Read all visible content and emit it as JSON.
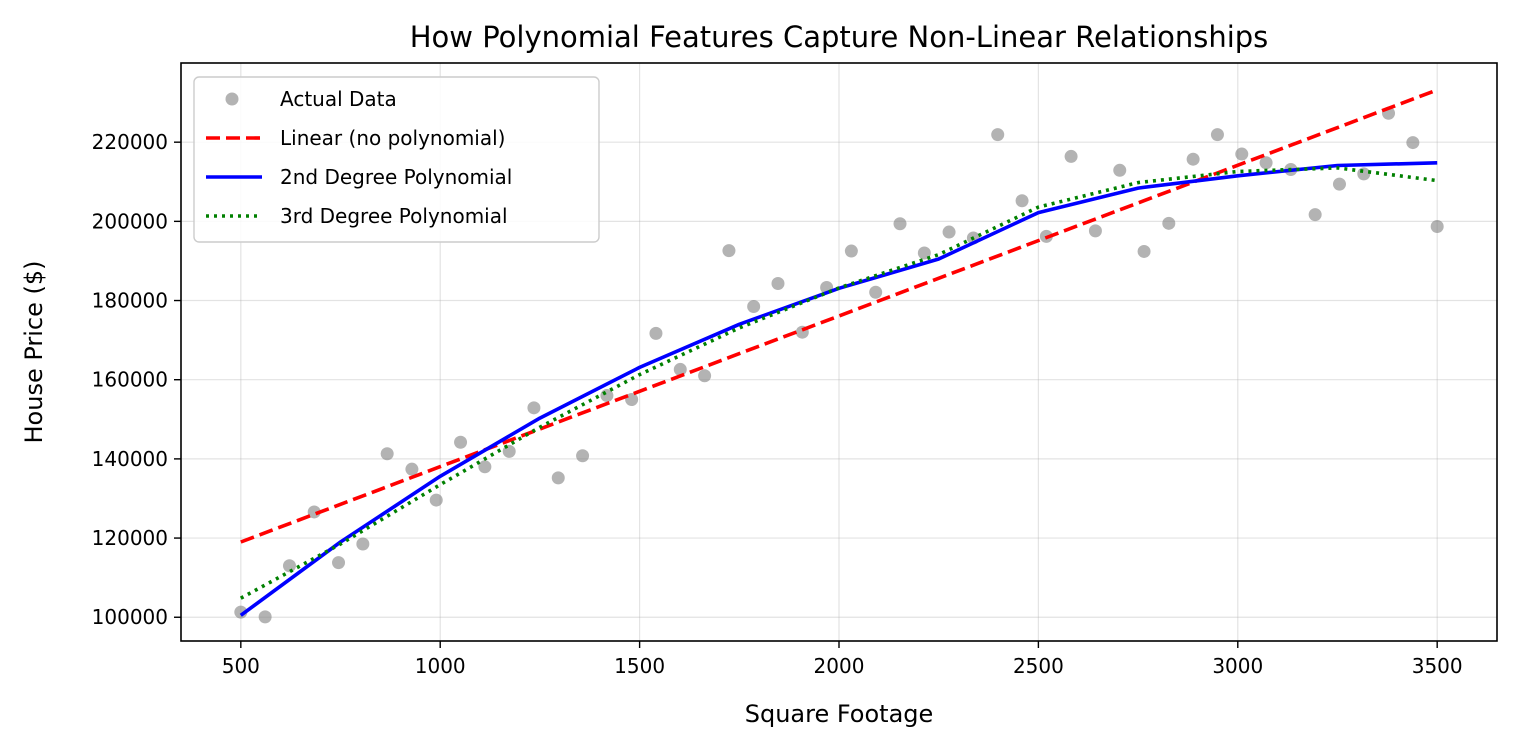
{
  "chart_data": {
    "type": "scatter",
    "title": "How Polynomial Features Capture Non-Linear Relationships",
    "xlabel": "Square Footage",
    "ylabel": "House Price ($)",
    "xlim": [
      350,
      3650
    ],
    "ylim": [
      94000,
      240000
    ],
    "x_ticks": [
      500,
      1000,
      1500,
      2000,
      2500,
      3000,
      3500
    ],
    "y_ticks": [
      100000,
      120000,
      140000,
      160000,
      180000,
      200000,
      220000
    ],
    "grid": true,
    "legend_position": "top-left",
    "series": [
      {
        "name": "Actual Data",
        "kind": "scatter",
        "color": "#808080",
        "x": [
          500,
          561,
          622,
          684,
          745,
          806,
          867,
          929,
          990,
          1051,
          1112,
          1173,
          1235,
          1296,
          1357,
          1418,
          1480,
          1541,
          1602,
          1663,
          1724,
          1786,
          1847,
          1908,
          1969,
          2031,
          2092,
          2153,
          2214,
          2276,
          2337,
          2398,
          2459,
          2520,
          2582,
          2643,
          2704,
          2765,
          2827,
          2888,
          2949,
          3010,
          3071,
          3133,
          3194,
          3255,
          3316,
          3378,
          3439,
          3500
        ],
        "y": [
          101300,
          100100,
          113000,
          126600,
          113800,
          118500,
          141300,
          137400,
          129600,
          144200,
          138000,
          141900,
          152900,
          135200,
          140800,
          156000,
          155000,
          171700,
          162600,
          161000,
          192600,
          178500,
          184300,
          172000,
          183300,
          192500,
          182100,
          199400,
          192000,
          197300,
          195800,
          221900,
          205200,
          196200,
          216400,
          197600,
          212900,
          192400,
          199500,
          215700,
          221900,
          217000,
          214800,
          213100,
          201700,
          209400,
          212000,
          227300,
          219900,
          198700
        ]
      },
      {
        "name": "Linear (no polynomial)",
        "kind": "line",
        "style": "dashed",
        "color": "#ff0000",
        "x": [
          500,
          3500
        ],
        "y": [
          119000,
          233200
        ]
      },
      {
        "name": "2nd Degree Polynomial",
        "kind": "line",
        "style": "solid",
        "color": "#0000ff",
        "x": [
          500,
          750,
          1000,
          1250,
          1500,
          1750,
          2000,
          2250,
          2500,
          2750,
          3000,
          3250,
          3500
        ],
        "y": [
          100500,
          119000,
          135600,
          150300,
          163100,
          174000,
          183100,
          190500,
          202200,
          208400,
          211500,
          214100,
          214800
        ]
      },
      {
        "name": "3rd Degree Polynomial",
        "kind": "line",
        "style": "dotted",
        "color": "#008000",
        "x": [
          500,
          750,
          1000,
          1250,
          1500,
          1750,
          2000,
          2250,
          2500,
          2750,
          3000,
          3250,
          3500
        ],
        "y": [
          104800,
          118500,
          133500,
          148000,
          161300,
          173100,
          183200,
          191600,
          203600,
          209800,
          212600,
          213500,
          210300
        ]
      }
    ]
  }
}
